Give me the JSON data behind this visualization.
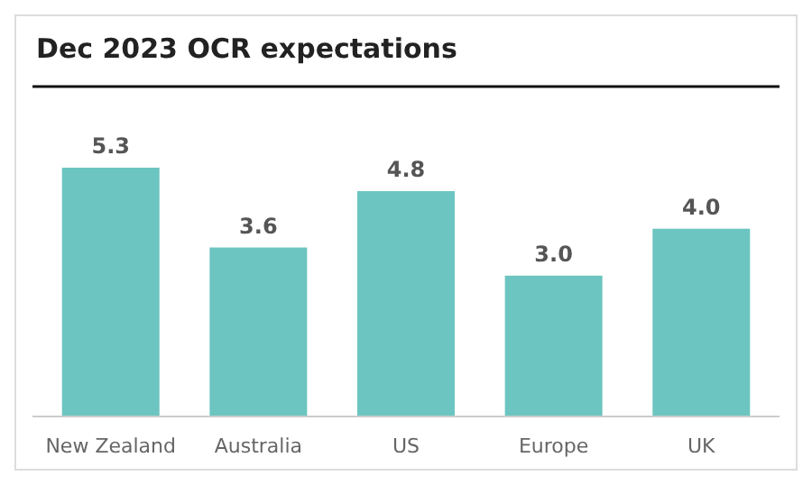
{
  "chart_data": {
    "type": "bar",
    "title": "Dec 2023 OCR expectations",
    "categories": [
      "New Zealand",
      "Australia",
      "US",
      "Europe",
      "UK"
    ],
    "values": [
      5.3,
      3.6,
      4.8,
      3.0,
      4.0
    ],
    "value_labels": [
      "5.3",
      "3.6",
      "4.8",
      "3.0",
      "4.0"
    ],
    "color": "#6cc5c0"
  }
}
